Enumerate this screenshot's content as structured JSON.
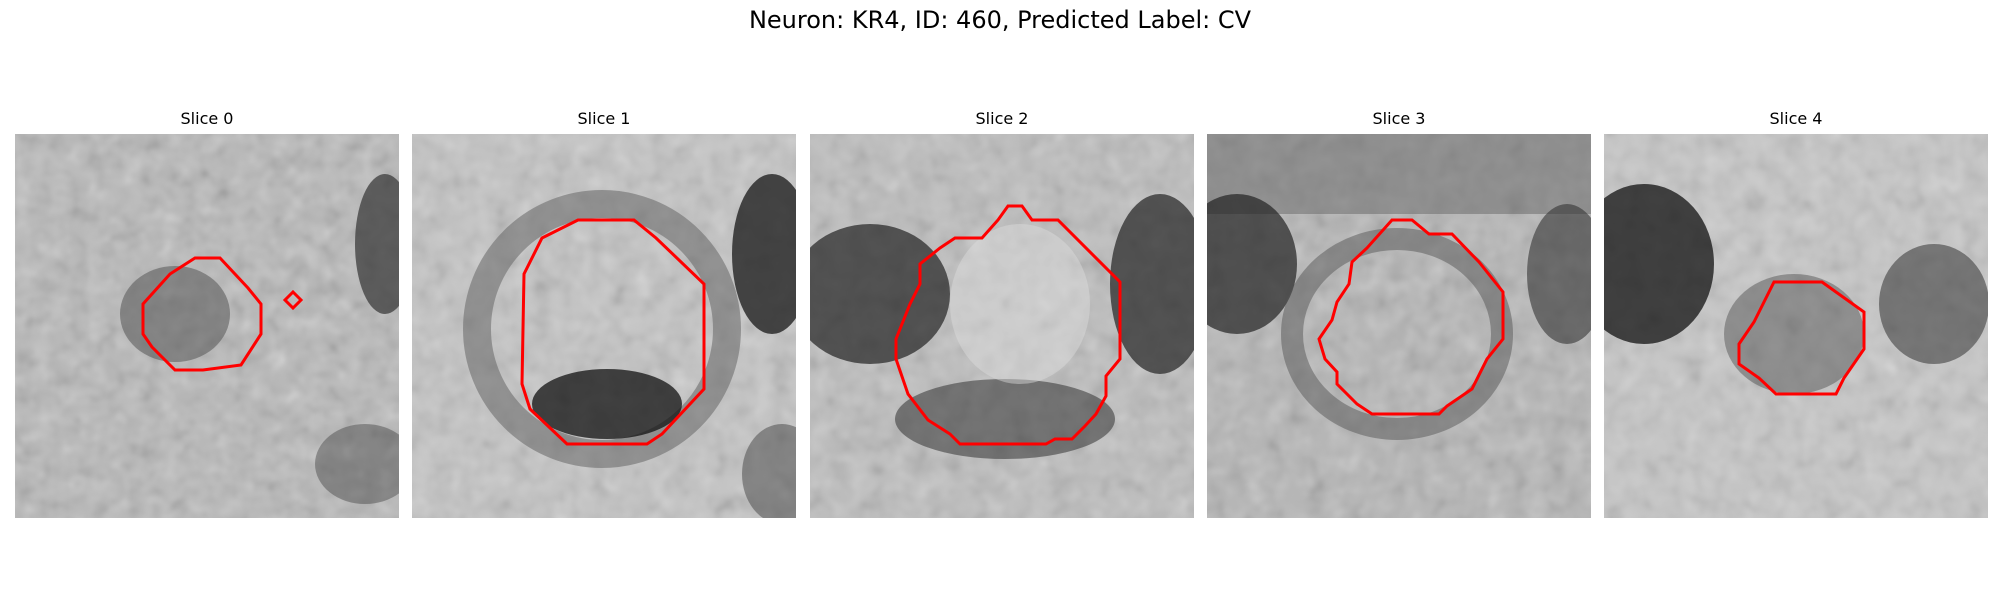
{
  "figure": {
    "title": "Neuron: KR4, ID: 460, Predicted Label: CV"
  },
  "panels": [
    {
      "title": "Slice 0"
    },
    {
      "title": "Slice 1"
    },
    {
      "title": "Slice 2"
    },
    {
      "title": "Slice 3"
    },
    {
      "title": "Slice 4"
    }
  ],
  "colors": {
    "contour": "#ff0000",
    "image_colormap": "grayscale"
  }
}
